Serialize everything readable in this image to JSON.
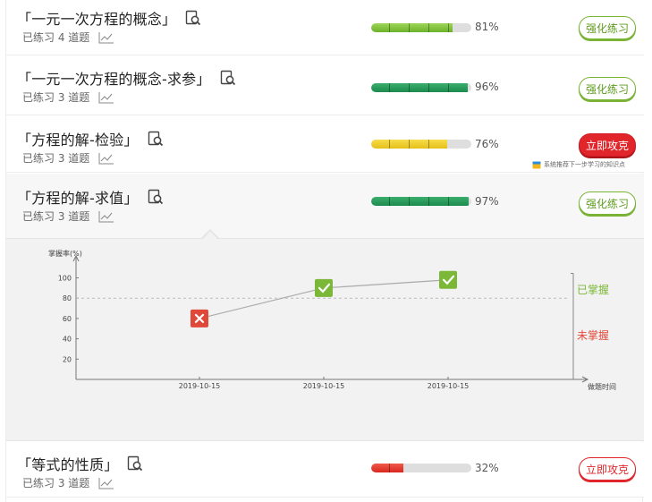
{
  "topics": [
    {
      "title": "「一元一次方程的概念」",
      "practice": "已练习 4 道题",
      "percent": "81%",
      "value": 81,
      "bar_color": "green",
      "button": "强化练习",
      "button_style": "green"
    },
    {
      "title": "「一元一次方程的概念-求参」",
      "practice": "已练习 3 道题",
      "percent": "96%",
      "value": 96,
      "bar_color": "dark-green",
      "button": "强化练习",
      "button_style": "green"
    },
    {
      "title": "「方程的解-检验」",
      "practice": "已练习 3 道题",
      "percent": "76%",
      "value": 76,
      "bar_color": "yellow",
      "button": "立即攻克",
      "button_style": "red"
    },
    {
      "title": "「方程的解-求值」",
      "practice": "已练习 3 道题",
      "percent": "97%",
      "value": 97,
      "bar_color": "dark-green",
      "button": "强化练习",
      "button_style": "green"
    },
    {
      "title": "「等式的性质」",
      "practice": "已练习 3 道题",
      "percent": "32%",
      "value": 32,
      "bar_color": "red",
      "button": "立即攻克",
      "button_style": "red-outline"
    }
  ],
  "recommend_text": "系统推荐下一步学习的知识点",
  "colors": {
    "green": "#7cc13a",
    "dark-green": "#23955a",
    "yellow": "#f2d02b",
    "red": "#e8352e",
    "mastered": "#7cb838",
    "not_mastered": "#e0493a"
  },
  "chart_data": {
    "type": "line",
    "ylabel": "掌握率(%)",
    "xlabel": "做题时间",
    "yticks": [
      20,
      40,
      60,
      80,
      100
    ],
    "ylim": [
      0,
      110
    ],
    "threshold": 80,
    "x": [
      "2019-10-15",
      "2019-10-15",
      "2019-10-15"
    ],
    "values": [
      60,
      90,
      98
    ],
    "marks": [
      "wrong",
      "correct",
      "correct"
    ],
    "mastered_label": "已掌握",
    "not_mastered_label": "未掌握"
  }
}
